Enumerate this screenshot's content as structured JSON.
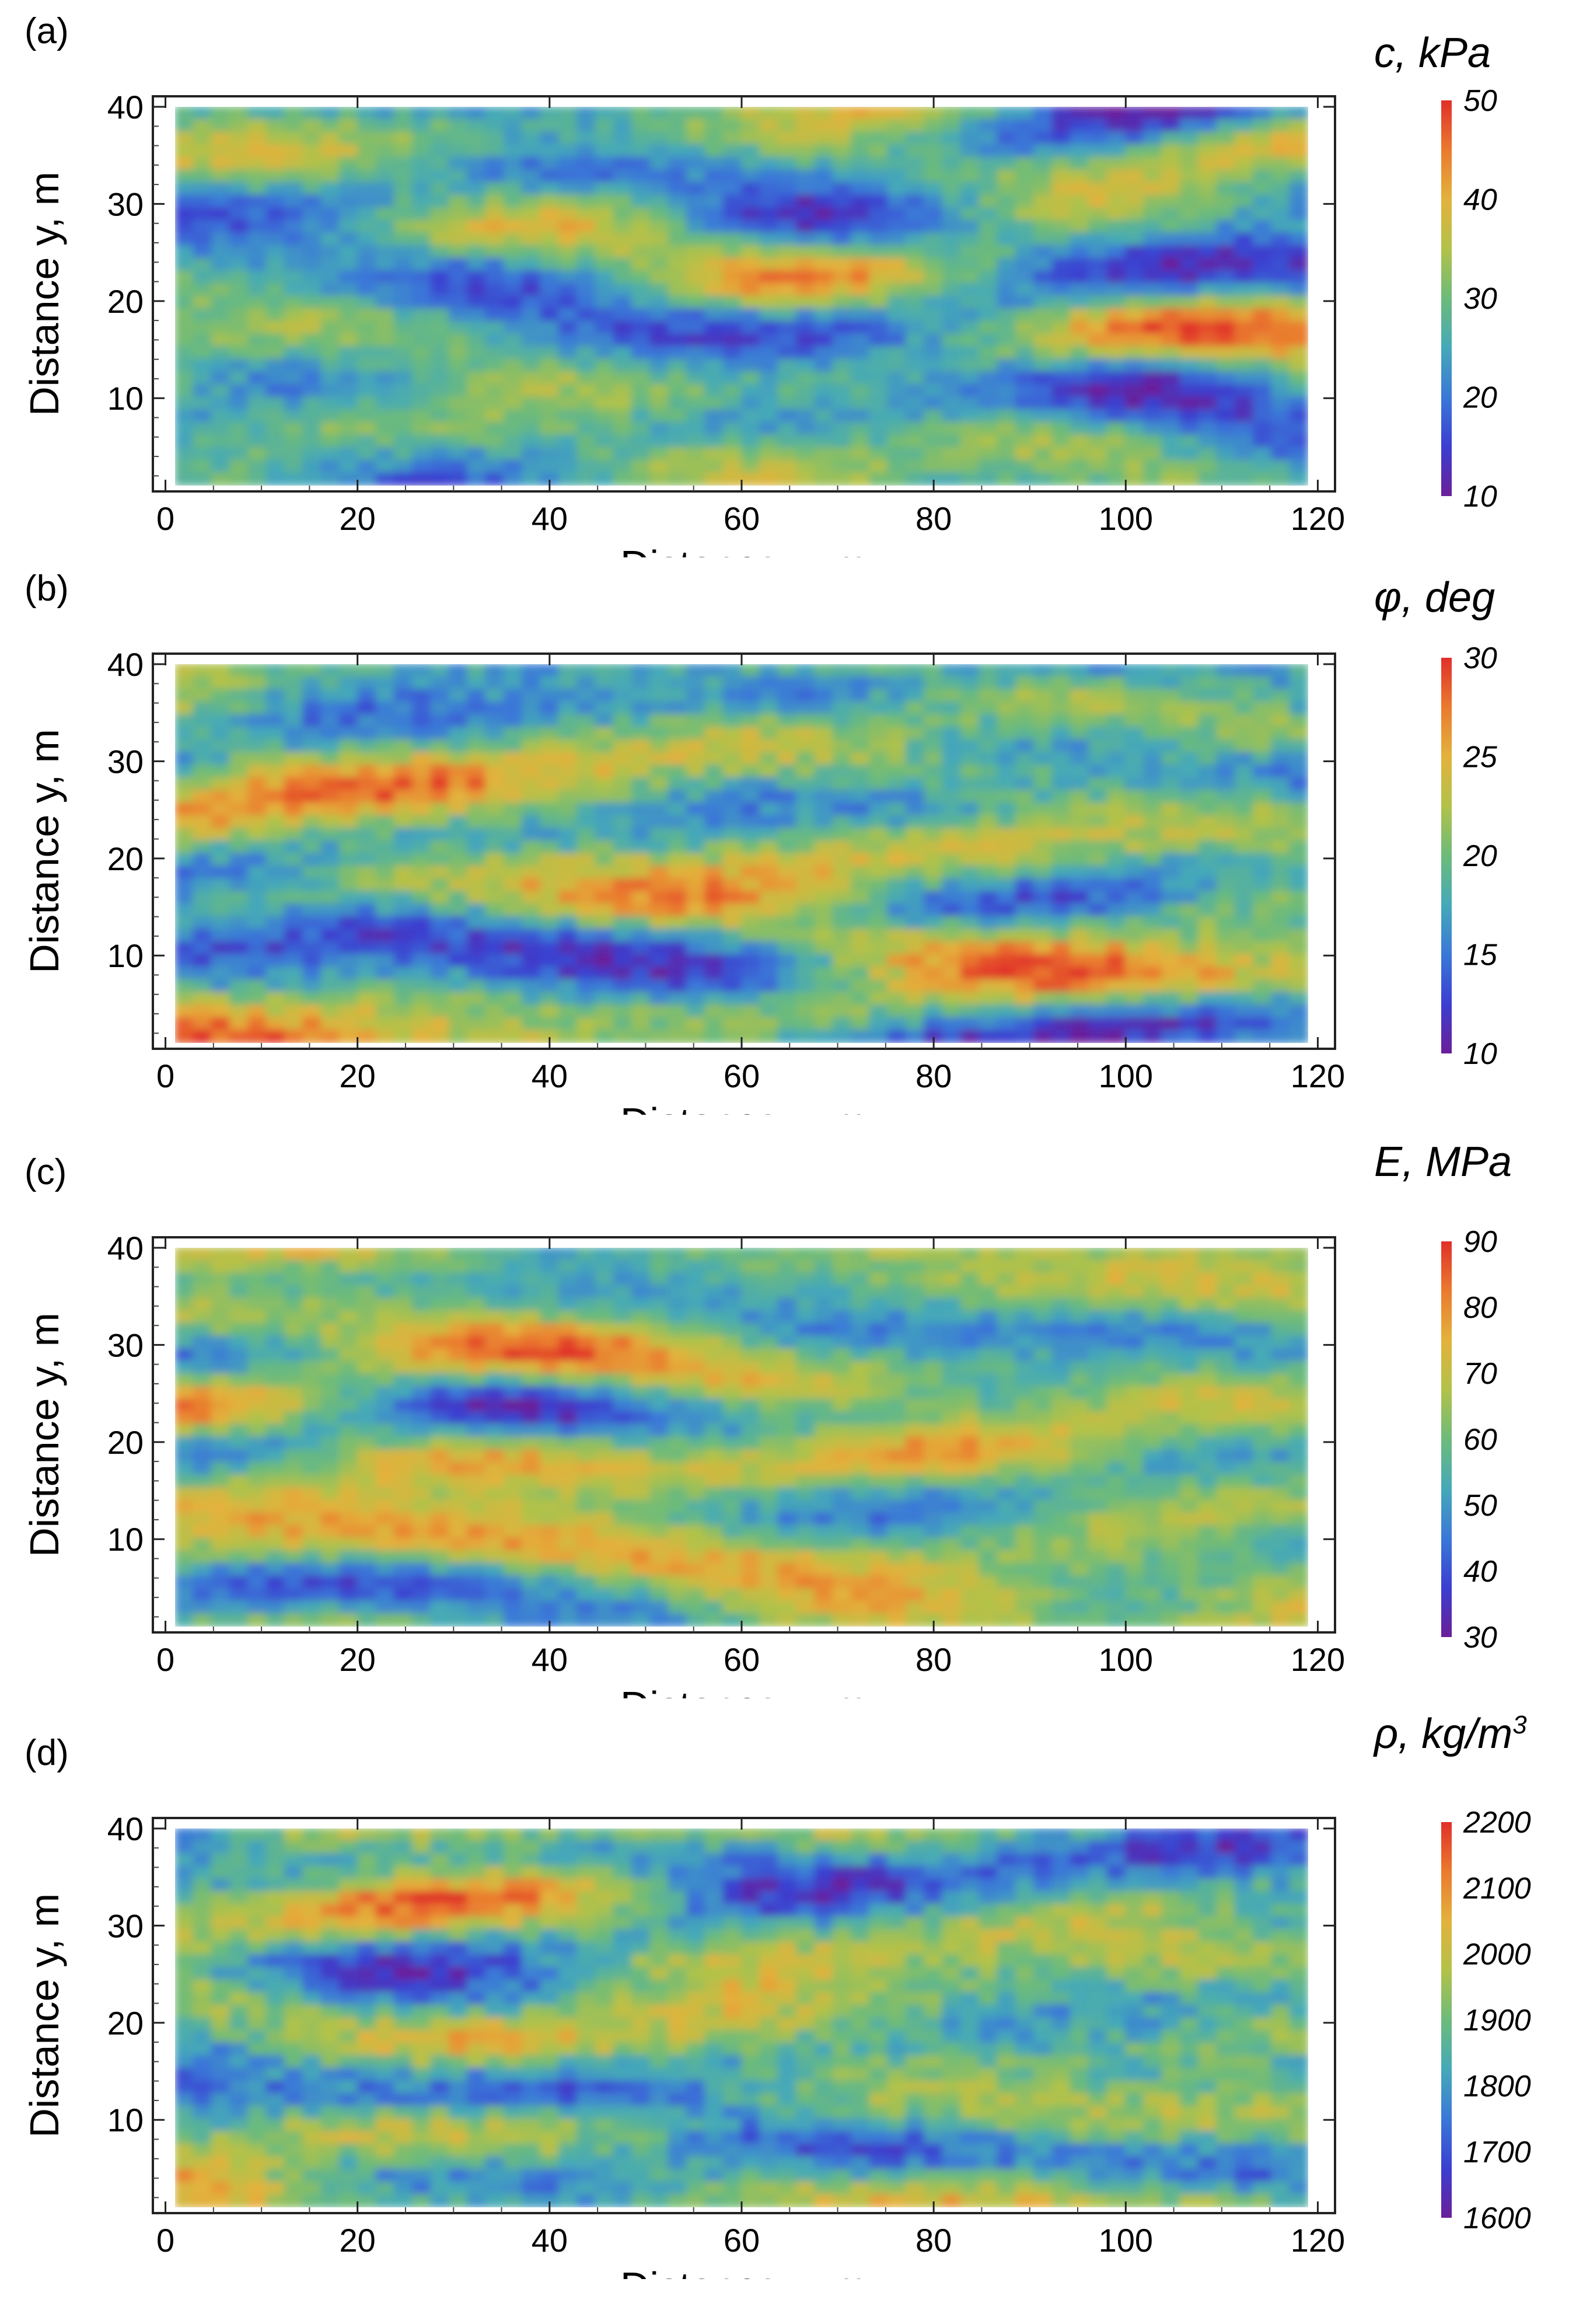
{
  "chart_data": [
    {
      "type": "heatmap",
      "panel_label": "(a)",
      "colorbar_label": "c, kPa",
      "xlabel": "Distance x, m",
      "ylabel": "Distance y, m",
      "xlim": [
        0,
        120
      ],
      "ylim": [
        0,
        40
      ],
      "xticks": [
        "0",
        "20",
        "40",
        "60",
        "80",
        "100",
        "120"
      ],
      "yticks": [
        "10",
        "20",
        "30",
        "40"
      ],
      "colorbar_range": [
        10,
        50
      ],
      "colorbar_ticks": [
        "10",
        "20",
        "30",
        "40",
        "50"
      ],
      "seed": 11
    },
    {
      "type": "heatmap",
      "panel_label": "(b)",
      "colorbar_label": "φ, deg",
      "xlabel": "Distance x, m",
      "ylabel": "Distance y, m",
      "xlim": [
        0,
        120
      ],
      "ylim": [
        0,
        40
      ],
      "xticks": [
        "0",
        "20",
        "40",
        "60",
        "80",
        "100",
        "120"
      ],
      "yticks": [
        "10",
        "20",
        "30",
        "40"
      ],
      "colorbar_range": [
        10,
        30
      ],
      "colorbar_ticks": [
        "10",
        "15",
        "20",
        "25",
        "30"
      ],
      "seed": 23
    },
    {
      "type": "heatmap",
      "panel_label": "(c)",
      "colorbar_label": "E, MPa",
      "xlabel": "Distance x, m",
      "ylabel": "Distance y, m",
      "xlim": [
        0,
        120
      ],
      "ylim": [
        0,
        40
      ],
      "xticks": [
        "0",
        "20",
        "40",
        "60",
        "80",
        "100",
        "120"
      ],
      "yticks": [
        "10",
        "20",
        "30",
        "40"
      ],
      "colorbar_range": [
        30,
        90
      ],
      "colorbar_ticks": [
        "30",
        "40",
        "50",
        "60",
        "70",
        "80",
        "90"
      ],
      "seed": 37
    },
    {
      "type": "heatmap",
      "panel_label": "(d)",
      "colorbar_label": "ρ, kg/m",
      "colorbar_label_sup": "3",
      "xlabel": "Distance x, m",
      "ylabel": "Distance y, m",
      "xlim": [
        0,
        120
      ],
      "ylim": [
        0,
        40
      ],
      "xticks": [
        "0",
        "20",
        "40",
        "60",
        "80",
        "100",
        "120"
      ],
      "yticks": [
        "10",
        "20",
        "30",
        "40"
      ],
      "colorbar_range": [
        1600,
        2200
      ],
      "colorbar_ticks": [
        "1600",
        "1700",
        "1800",
        "1900",
        "2000",
        "2100",
        "2200"
      ],
      "seed": 53
    }
  ],
  "colormap": [
    "#6a1f9a",
    "#3b3fd0",
    "#3a78d8",
    "#45a9b8",
    "#6dbb7a",
    "#b2c249",
    "#e3b23c",
    "#ea7a2e",
    "#e0302a"
  ]
}
